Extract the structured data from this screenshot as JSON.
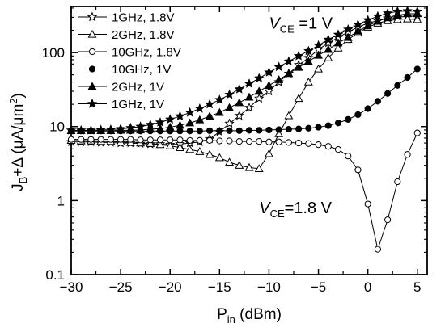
{
  "chart_data": {
    "type": "line",
    "title": "",
    "xlabel": "P",
    "xlabel_sub": "in",
    "xlabel_unit": " (dBm)",
    "ylabel_main": "J",
    "ylabel_sub": "B",
    "ylabel_rest": "+Δ (μA/μm",
    "ylabel_sup": "2",
    "ylabel_close": ")",
    "xlim": [
      -30,
      6
    ],
    "ylim": [
      0.1,
      420
    ],
    "yscale": "log",
    "grid": false,
    "legend_position": "top-left",
    "x_ticks": [
      -30,
      -25,
      -20,
      -15,
      -10,
      -5,
      0,
      5
    ],
    "x_tick_labels": [
      "−30",
      "−25",
      "−20",
      "−15",
      "−10",
      "−5",
      "0",
      "5"
    ],
    "y_ticks": [
      0.1,
      1,
      10,
      100
    ],
    "y_tick_labels": [
      "0.1",
      "1",
      "10",
      "100"
    ],
    "annotations": [
      {
        "v": "V",
        "sub": "CE",
        "rest": " =1 V",
        "x": -10,
        "y": 250
      },
      {
        "v": "V",
        "sub": "CE",
        "rest": "=1.8 V",
        "x": -11,
        "y": 0.8
      }
    ],
    "series": [
      {
        "name": "1GHz, 1.8V",
        "marker": "star-open",
        "x": [
          -30,
          -29,
          -28,
          -27,
          -26,
          -25,
          -24,
          -23,
          -22,
          -21,
          -20,
          -19,
          -18,
          -17,
          -16,
          -15,
          -14,
          -13,
          -12,
          -11,
          -10,
          -9,
          -8,
          -7,
          -6,
          -5,
          -4,
          -3,
          -2,
          -1,
          0,
          1,
          2,
          3,
          4,
          5
        ],
        "y": [
          6.2,
          6.2,
          6.2,
          6.1,
          6.1,
          6.0,
          6.0,
          5.9,
          5.8,
          5.8,
          5.7,
          5.8,
          6.0,
          6.2,
          6.8,
          8.5,
          11,
          14,
          18,
          24,
          30,
          40,
          52,
          68,
          85,
          110,
          135,
          160,
          190,
          220,
          250,
          270,
          290,
          300,
          310,
          310
        ]
      },
      {
        "name": "2GHz, 1.8V",
        "marker": "triangle-open",
        "x": [
          -30,
          -29,
          -28,
          -27,
          -26,
          -25,
          -24,
          -23,
          -22,
          -21,
          -20,
          -19,
          -18,
          -17,
          -16,
          -15,
          -14,
          -13,
          -12,
          -11,
          -10,
          -9,
          -8,
          -7,
          -6,
          -5,
          -4,
          -3,
          -2,
          -1,
          0,
          1,
          2,
          3,
          4,
          5
        ],
        "y": [
          6.5,
          6.4,
          6.4,
          6.3,
          6.3,
          6.2,
          6.1,
          6.0,
          5.9,
          5.7,
          5.5,
          5.2,
          4.9,
          4.6,
          4.2,
          3.8,
          3.3,
          3.0,
          2.8,
          2.7,
          4.3,
          8,
          14,
          24,
          40,
          60,
          85,
          115,
          150,
          185,
          220,
          250,
          270,
          280,
          285,
          280
        ]
      },
      {
        "name": "10GHz, 1.8V",
        "marker": "circle-open",
        "x": [
          -30,
          -29,
          -28,
          -27,
          -26,
          -25,
          -24,
          -23,
          -22,
          -21,
          -20,
          -19,
          -18,
          -17,
          -16,
          -15,
          -14,
          -13,
          -12,
          -11,
          -10,
          -9,
          -8,
          -7,
          -6,
          -5,
          -4,
          -3,
          -2,
          -1,
          0,
          1,
          2,
          3,
          4,
          5
        ],
        "y": [
          6.7,
          6.7,
          6.7,
          6.7,
          6.7,
          6.7,
          6.7,
          6.6,
          6.6,
          6.6,
          6.6,
          6.6,
          6.5,
          6.5,
          6.5,
          6.4,
          6.4,
          6.3,
          6.3,
          6.3,
          6.2,
          6.2,
          6.1,
          6.0,
          5.9,
          5.7,
          5.4,
          4.9,
          4.0,
          2.6,
          0.9,
          0.22,
          0.55,
          1.8,
          4.2,
          8.2
        ]
      },
      {
        "name": "10GHz, 1V",
        "marker": "circle-filled",
        "x": [
          -30,
          -29,
          -28,
          -27,
          -26,
          -25,
          -24,
          -23,
          -22,
          -21,
          -20,
          -19,
          -18,
          -17,
          -16,
          -15,
          -14,
          -13,
          -12,
          -11,
          -10,
          -9,
          -8,
          -7,
          -6,
          -5,
          -4,
          -3,
          -2,
          -1,
          0,
          1,
          2,
          3,
          4,
          5
        ],
        "y": [
          8.7,
          8.7,
          8.7,
          8.7,
          8.7,
          8.7,
          8.7,
          8.7,
          8.7,
          8.7,
          8.7,
          8.7,
          8.7,
          8.7,
          8.8,
          8.8,
          8.8,
          8.8,
          8.9,
          8.9,
          9.0,
          9.1,
          9.2,
          9.3,
          9.5,
          9.8,
          10.3,
          11.2,
          12.5,
          14.5,
          17.5,
          22,
          28,
          36,
          46,
          60
        ]
      },
      {
        "name": "2GHz, 1V",
        "marker": "triangle-filled",
        "x": [
          -30,
          -29,
          -28,
          -27,
          -26,
          -25,
          -24,
          -23,
          -22,
          -21,
          -20,
          -19,
          -18,
          -17,
          -16,
          -15,
          -14,
          -13,
          -12,
          -11,
          -10,
          -9,
          -8,
          -7,
          -6,
          -5,
          -4,
          -3,
          -2,
          -1,
          0,
          1,
          2,
          3,
          4,
          5
        ],
        "y": [
          8.8,
          8.8,
          8.8,
          8.8,
          8.8,
          8.9,
          8.9,
          9.0,
          9.2,
          9.4,
          9.8,
          10.4,
          11.2,
          12.3,
          13.8,
          15.5,
          18,
          21,
          25,
          30,
          36,
          43,
          52,
          63,
          76,
          92,
          110,
          135,
          160,
          195,
          230,
          265,
          295,
          320,
          335,
          335
        ]
      },
      {
        "name": "1GHz, 1V",
        "marker": "star-filled",
        "x": [
          -30,
          -29,
          -28,
          -27,
          -26,
          -25,
          -24,
          -23,
          -22,
          -21,
          -20,
          -19,
          -18,
          -17,
          -16,
          -15,
          -14,
          -13,
          -12,
          -11,
          -10,
          -9,
          -8,
          -7,
          -6,
          -5,
          -4,
          -3,
          -2,
          -1,
          0,
          1,
          2,
          3,
          4,
          5
        ],
        "y": [
          8.9,
          8.9,
          8.9,
          9.0,
          9.1,
          9.3,
          9.6,
          10.0,
          10.6,
          11.4,
          12.5,
          13.8,
          15.5,
          17.5,
          20,
          23,
          27,
          32,
          38,
          45,
          54,
          64,
          76,
          90,
          105,
          125,
          150,
          175,
          205,
          240,
          275,
          310,
          340,
          360,
          365,
          360
        ]
      }
    ]
  }
}
